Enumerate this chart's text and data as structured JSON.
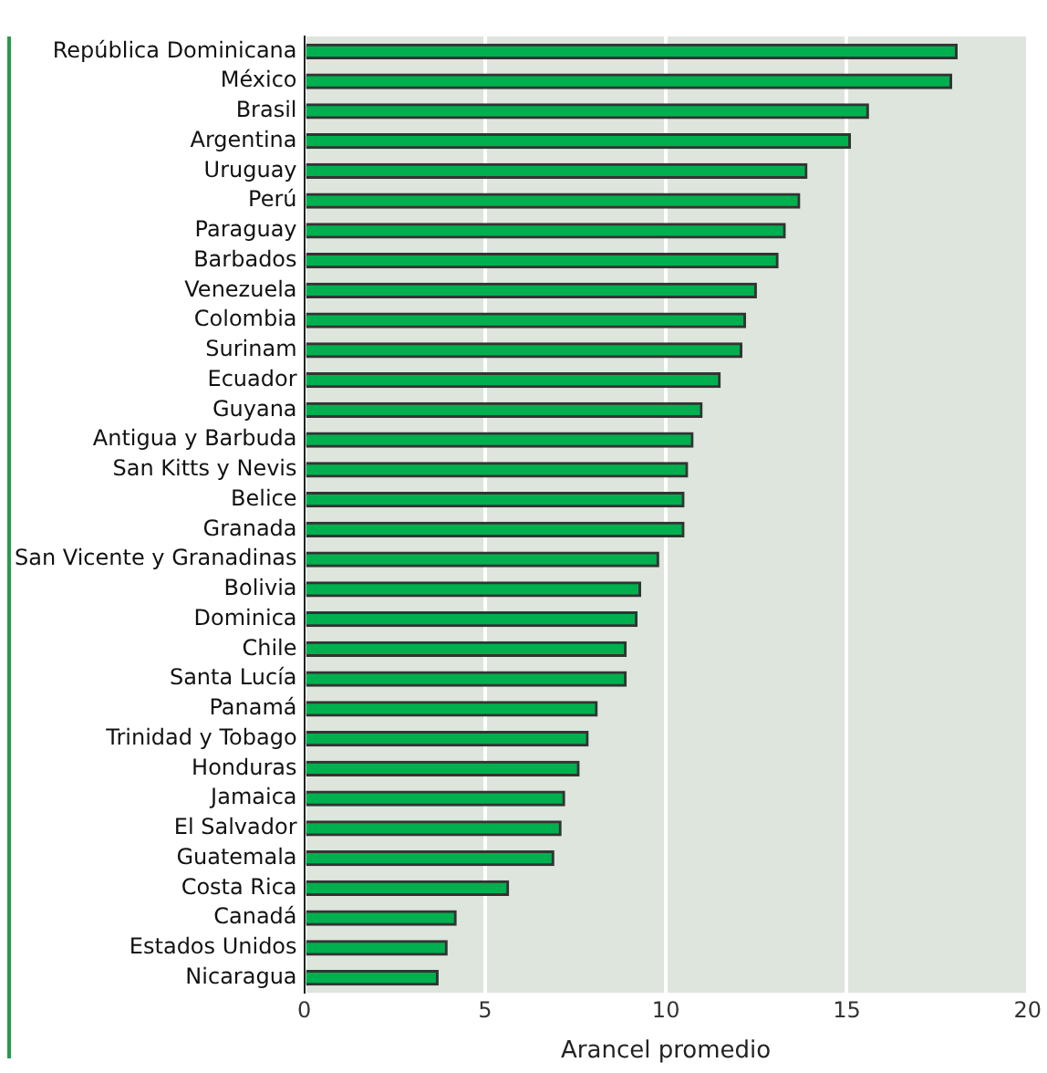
{
  "chart_data": {
    "type": "bar",
    "orientation": "horizontal",
    "xlabel": "Arancel promedio",
    "categories": [
      "República Dominicana",
      "México",
      "Brasil",
      "Argentina",
      "Uruguay",
      "Perú",
      "Paraguay",
      "Barbados",
      "Venezuela",
      "Colombia",
      "Surinam",
      "Ecuador",
      "Guyana",
      "Antigua y Barbuda",
      "San Kitts y Nevis",
      "Belice",
      "Granada",
      "San Vicente y Granadinas",
      "Bolivia",
      "Dominica",
      "Chile",
      "Santa Lucía",
      "Panamá",
      "Trinidad y Tobago",
      "Honduras",
      "Jamaica",
      "El Salvador",
      "Guatemala",
      "Costa Rica",
      "Canadá",
      "Estados Unidos",
      "Nicaragua"
    ],
    "values": [
      18.05,
      17.9,
      15.6,
      15.1,
      13.9,
      13.7,
      13.3,
      13.1,
      12.5,
      12.2,
      12.1,
      11.5,
      11.0,
      10.75,
      10.6,
      10.5,
      10.5,
      9.8,
      9.3,
      9.2,
      8.9,
      8.9,
      8.1,
      7.85,
      7.6,
      7.2,
      7.1,
      6.9,
      5.65,
      4.2,
      3.95,
      3.7
    ],
    "color": "#00b04f",
    "xlim": [
      0,
      20
    ],
    "xticks": [
      0,
      5,
      10,
      15,
      20
    ],
    "grid": "x",
    "legend": false
  }
}
